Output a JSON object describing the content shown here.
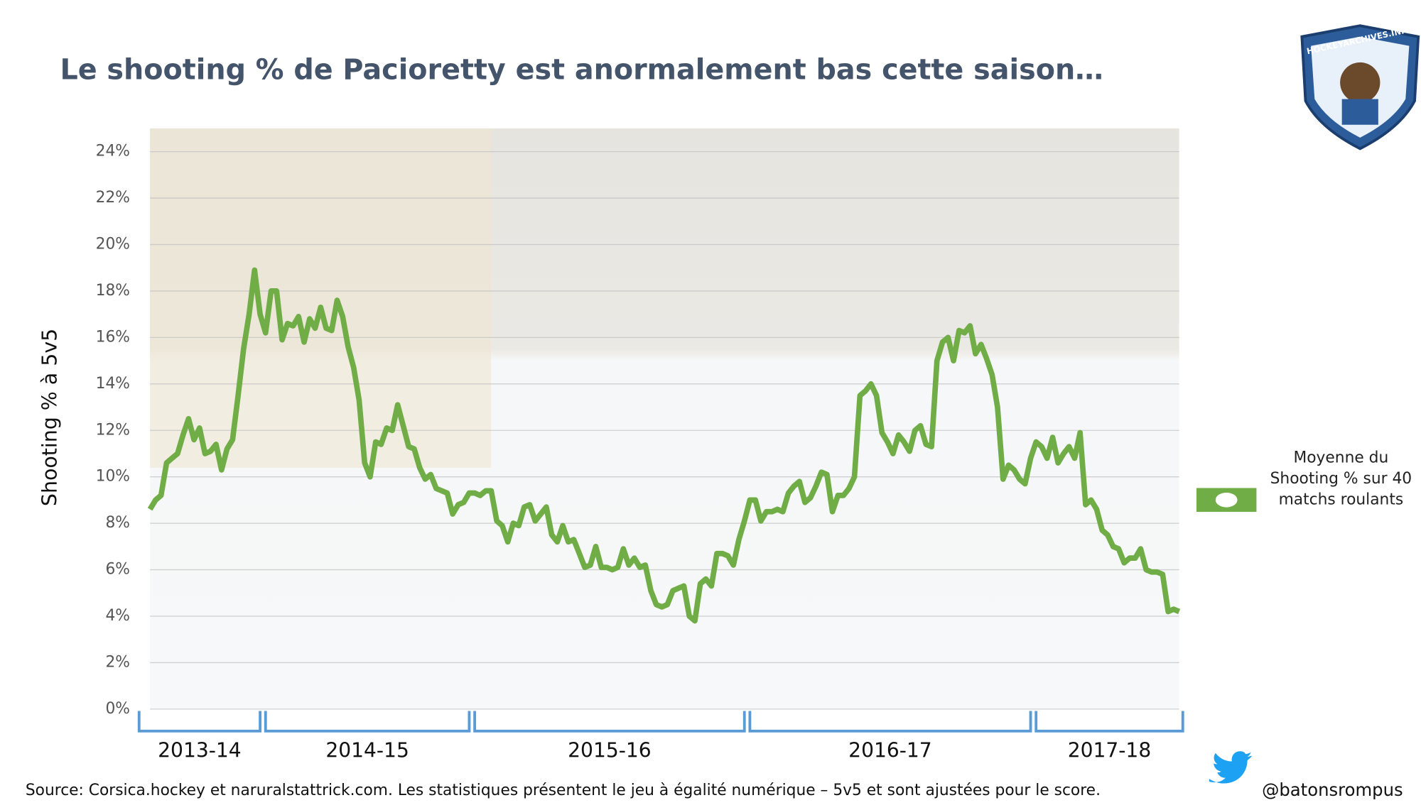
{
  "chart_data": {
    "type": "line",
    "title": "Le shooting % de Pacioretty est anormalement bas cette saison…",
    "y_label": "Shooting % à 5v5",
    "ylim": [
      0,
      25
    ],
    "yticks": [
      {
        "value": 0,
        "label": "0%"
      },
      {
        "value": 2,
        "label": "2%"
      },
      {
        "value": 4,
        "label": "4%"
      },
      {
        "value": 6,
        "label": "6%"
      },
      {
        "value": 8,
        "label": "8%"
      },
      {
        "value": 10,
        "label": "10%"
      },
      {
        "value": 12,
        "label": "12%"
      },
      {
        "value": 14,
        "label": "14%"
      },
      {
        "value": 16,
        "label": "16%"
      },
      {
        "value": 18,
        "label": "18%"
      },
      {
        "value": 20,
        "label": "20%"
      },
      {
        "value": 22,
        "label": "22%"
      },
      {
        "value": 24,
        "label": "24%"
      }
    ],
    "grid": true,
    "series": [
      {
        "name": "Moyenne du Shooting % sur 40 matchs roulants",
        "color": "#70ad47",
        "groups": [
          {
            "label": "2013-14",
            "values": [
              8.6,
              9.0,
              9.2,
              10.6,
              10.8,
              11.0,
              11.8,
              12.5,
              11.6,
              12.1,
              11.0,
              11.1,
              11.4,
              10.3,
              11.2,
              11.6,
              13.5,
              15.5,
              17.0,
              18.9,
              17.0
            ]
          },
          {
            "label": "2014-15",
            "values": [
              16.2,
              18.0,
              18.0,
              15.9,
              16.6,
              16.5,
              16.9,
              15.8,
              16.8,
              16.4,
              17.3,
              16.4,
              16.3,
              17.6,
              16.9,
              15.6,
              14.7,
              13.3,
              10.6,
              10.0,
              11.5,
              11.4,
              12.1,
              12.0,
              13.1,
              12.2,
              11.3,
              11.2,
              10.4,
              9.9,
              10.1,
              9.5,
              9.4,
              9.3,
              8.4,
              8.8,
              8.9,
              9.3
            ]
          },
          {
            "label": "2015-16",
            "values": [
              9.3,
              9.2,
              9.4,
              9.4,
              8.1,
              7.9,
              7.2,
              8.0,
              7.9,
              8.7,
              8.8,
              8.1,
              8.4,
              8.7,
              7.5,
              7.2,
              7.9,
              7.2,
              7.3,
              6.7,
              6.1,
              6.2,
              7.0,
              6.1,
              6.1,
              6.0,
              6.1,
              6.9,
              6.2,
              6.5,
              6.1,
              6.2,
              5.1,
              4.5,
              4.4,
              4.5,
              5.1,
              5.2,
              5.3,
              4.0,
              3.8,
              5.4,
              5.6,
              5.3,
              6.7,
              6.7,
              6.6,
              6.2,
              7.3,
              8.1
            ]
          },
          {
            "label": "2016-17",
            "values": [
              9.0,
              9.0,
              8.1,
              8.5,
              8.5,
              8.6,
              8.5,
              9.3,
              9.6,
              9.8,
              8.9,
              9.1,
              9.6,
              10.2,
              10.1,
              8.5,
              9.2,
              9.2,
              9.5,
              10.0,
              13.5,
              13.7,
              14.0,
              13.5,
              11.9,
              11.5,
              11.0,
              11.8,
              11.5,
              11.1,
              12.0,
              12.2,
              11.4,
              11.3,
              15.0,
              15.8,
              16.0,
              15.0,
              16.3,
              16.2,
              16.5,
              15.3,
              15.7,
              15.1,
              14.4,
              13.0,
              9.9,
              10.5,
              10.3,
              9.9,
              9.7,
              10.8
            ]
          },
          {
            "label": "2017-18",
            "values": [
              11.5,
              11.3,
              10.8,
              11.7,
              10.6,
              11.0,
              11.3,
              10.8,
              11.9,
              8.8,
              9.0,
              8.6,
              7.7,
              7.5,
              7.0,
              6.9,
              6.3,
              6.5,
              6.5,
              6.9,
              6.0,
              5.9,
              5.9,
              5.8,
              4.2,
              4.3,
              4.2
            ]
          }
        ]
      }
    ],
    "legend_position": "right",
    "source": "Source: Corsica.hockey et naruralstattrick.com. Les statistiques présentent le jeu à égalité numérique – 5v5 et sont ajustées pour le score.",
    "handle": "@batonsrompus",
    "logo_text": "HOCKEYARCHIVES.INFO"
  }
}
